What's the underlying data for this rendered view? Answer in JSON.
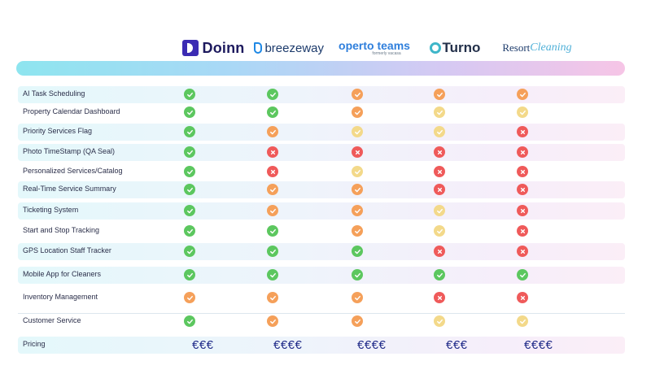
{
  "brands": {
    "doinn": "Doinn",
    "breezeway": "breezeway",
    "operto": "operto teams",
    "operto_sub": "formerly vacasa",
    "turno": "Turno",
    "resort_part1": "Resort",
    "resort_part2": "Cleaning"
  },
  "colors": {
    "green": "#5cc75f",
    "orange": "#f5a05a",
    "yellow": "#f3d98a",
    "red": "#ef5a5a"
  },
  "features": [
    {
      "label": "AI Task Scheduling",
      "cells": [
        "green",
        "green",
        "orange",
        "orange",
        "orange"
      ]
    },
    {
      "label": "Property Calendar Dashboard",
      "cells": [
        "green",
        "green",
        "orange",
        "yellow",
        "yellow"
      ]
    },
    {
      "label": "Priority Services Flag",
      "cells": [
        "green",
        "orange",
        "yellow",
        "yellow",
        "red"
      ]
    },
    {
      "label": "Photo TimeStamp (QA Seal)",
      "cells": [
        "green",
        "red",
        "red",
        "red",
        "red"
      ]
    },
    {
      "label": "Personalized Services/Catalog",
      "cells": [
        "green",
        "red",
        "yellow",
        "red",
        "red"
      ]
    },
    {
      "label": "Real-Time Service Summary",
      "cells": [
        "green",
        "orange",
        "orange",
        "red",
        "red"
      ]
    },
    {
      "label": "Ticketing System",
      "cells": [
        "green",
        "orange",
        "orange",
        "yellow",
        "red"
      ]
    },
    {
      "label": "Start and Stop Tracking",
      "cells": [
        "green",
        "green",
        "orange",
        "yellow",
        "red"
      ]
    },
    {
      "label": "GPS Location Staff Tracker",
      "cells": [
        "green",
        "green",
        "green",
        "red",
        "red"
      ]
    },
    {
      "label": "Mobile App for Cleaners",
      "cells": [
        "green",
        "green",
        "green",
        "green",
        "green"
      ]
    },
    {
      "label": "Inventory Management",
      "cells": [
        "orange",
        "orange",
        "orange",
        "red",
        "red"
      ]
    },
    {
      "label": "Customer Service",
      "cells": [
        "green",
        "orange",
        "orange",
        "yellow",
        "yellow"
      ]
    }
  ],
  "pricing": {
    "label": "Pricing",
    "values": [
      "€€€",
      "€€€€",
      "€€€€",
      "€€€",
      "€€€€"
    ]
  }
}
